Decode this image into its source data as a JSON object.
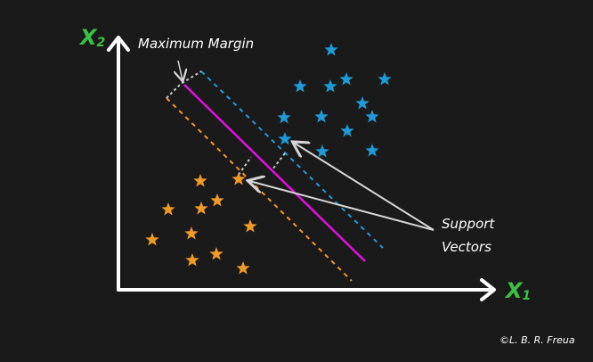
{
  "axes": {
    "x_label": "X",
    "x_subscript": "1",
    "y_label": "X",
    "y_subscript": "2"
  },
  "annotations": {
    "margin_label": "Maximum Margin",
    "support_vectors_line1": "Support",
    "support_vectors_line2": "Vectors"
  },
  "credit": "©L. B. R. Freua",
  "colors": {
    "background": "#1b1a1a",
    "axis": "#ffffff",
    "axis_label": "#39c142",
    "hyperplane": "#e010e0",
    "class_blue": "#1e9ad6",
    "class_orange": "#ef9a27",
    "arrow": "#d6d6d6"
  },
  "icons": {
    "data_point": "star-icon"
  }
}
